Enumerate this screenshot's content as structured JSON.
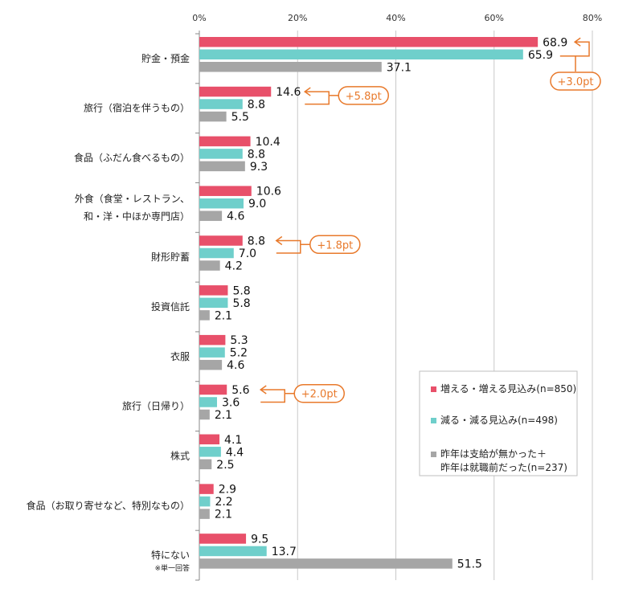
{
  "chart_data": {
    "type": "bar",
    "orientation": "horizontal",
    "xlim": [
      0,
      80
    ],
    "x_ticks": [
      "0%",
      "20%",
      "40%",
      "60%",
      "80%"
    ],
    "grid": true,
    "categories": [
      "貯金・預金",
      "旅行（宿泊を伴うもの）",
      "食品（ふだん食べるもの）",
      "外食（食堂・レストラン、和・洋・中ほか専門店）",
      "財形貯蓄",
      "投資信託",
      "衣服",
      "旅行（日帰り）",
      "株式",
      "食品（お取り寄せなど、特別なもの）",
      "特にない"
    ],
    "category_lines": [
      [
        "貯金・預金"
      ],
      [
        "旅行（宿泊を伴うもの）"
      ],
      [
        "食品（ふだん食べるもの）"
      ],
      [
        "外食（食堂・レストラン、",
        "和・洋・中ほか専門店）"
      ],
      [
        "財形貯蓄"
      ],
      [
        "投資信託"
      ],
      [
        "衣服"
      ],
      [
        "旅行（日帰り）"
      ],
      [
        "株式"
      ],
      [
        "食品（お取り寄せなど、特別なもの）"
      ],
      [
        "特にない"
      ]
    ],
    "category_notes": [
      "",
      "",
      "",
      "",
      "",
      "",
      "",
      "",
      "",
      "",
      "※単一回答"
    ],
    "series": [
      {
        "name": "増える・増える見込み(n=850)",
        "color": "#e8506a",
        "values": [
          68.9,
          14.6,
          10.4,
          10.6,
          8.8,
          5.8,
          5.3,
          5.6,
          4.1,
          2.9,
          9.5
        ]
      },
      {
        "name": "減る・減る見込み(n=498)",
        "color": "#6fcfcb",
        "values": [
          65.9,
          8.8,
          8.8,
          9.0,
          7.0,
          5.8,
          5.2,
          3.6,
          4.4,
          2.2,
          13.7
        ]
      },
      {
        "name_lines": [
          "昨年は支給が無かった＋",
          "昨年は就職前だった(n=237)"
        ],
        "color": "#a6a6a6",
        "values": [
          37.1,
          5.5,
          9.3,
          4.6,
          4.2,
          2.1,
          4.6,
          2.1,
          2.5,
          2.1,
          51.5
        ]
      }
    ],
    "legend_position": "right",
    "annotations": [
      {
        "text": "+3.0pt",
        "category": "貯金・預金"
      },
      {
        "text": "+5.8pt",
        "category": "旅行（宿泊を伴うもの）"
      },
      {
        "text": "+1.8pt",
        "category": "財形貯蓄"
      },
      {
        "text": "+2.0pt",
        "category": "旅行（日帰り）"
      }
    ],
    "annotation_color": "#e8792b"
  }
}
